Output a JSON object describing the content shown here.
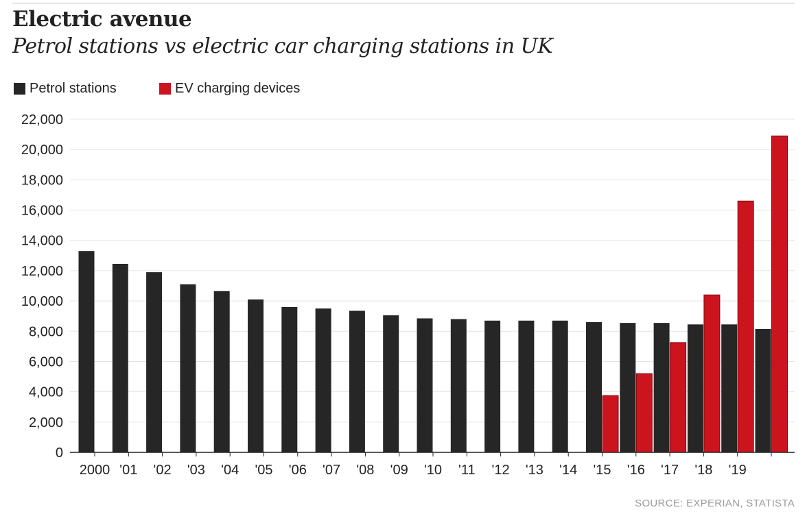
{
  "header": {
    "title": "Electric avenue",
    "subtitle": "Petrol stations vs electric car charging stations in UK"
  },
  "legend": {
    "items": [
      {
        "label": "Petrol stations",
        "color": "#262626"
      },
      {
        "label": "EV charging devices",
        "color": "#cc141f"
      }
    ]
  },
  "source": "SOURCE: EXPERIAN, STATISTA",
  "chart_data": {
    "type": "bar",
    "title": "Electric avenue",
    "subtitle": "Petrol stations vs electric car charging stations in UK",
    "xlabel": "",
    "ylabel": "",
    "ylim": [
      0,
      22000
    ],
    "yticks": [
      0,
      2000,
      4000,
      6000,
      8000,
      10000,
      12000,
      14000,
      16000,
      18000,
      20000,
      22000
    ],
    "ytick_labels": [
      "0",
      "2,000",
      "4,000",
      "6,000",
      "8,000",
      "10,000",
      "12,000",
      "14,000",
      "16,000",
      "18,000",
      "20,000",
      "22,000"
    ],
    "categories": [
      "2000",
      "'01",
      "'02",
      "'03",
      "'04",
      "'05",
      "'06",
      "'07",
      "'08",
      "'09",
      "'10",
      "'11",
      "'12",
      "'13",
      "'14",
      "'15",
      "'16",
      "'17",
      "'18",
      "'19",
      ""
    ],
    "grid": true,
    "legend_position": "top-left",
    "series": [
      {
        "name": "Petrol stations",
        "color": "#262626",
        "values": [
          13300,
          12450,
          11900,
          11100,
          10650,
          10100,
          9600,
          9500,
          9350,
          9050,
          8850,
          8800,
          8700,
          8700,
          8700,
          8600,
          8550,
          8550,
          8450,
          8450,
          8150
        ]
      },
      {
        "name": "EV charging devices",
        "color": "#cc141f",
        "values": [
          null,
          null,
          null,
          null,
          null,
          null,
          null,
          null,
          null,
          null,
          null,
          null,
          null,
          null,
          null,
          3750,
          5200,
          7250,
          10400,
          16600,
          20900
        ]
      }
    ]
  }
}
